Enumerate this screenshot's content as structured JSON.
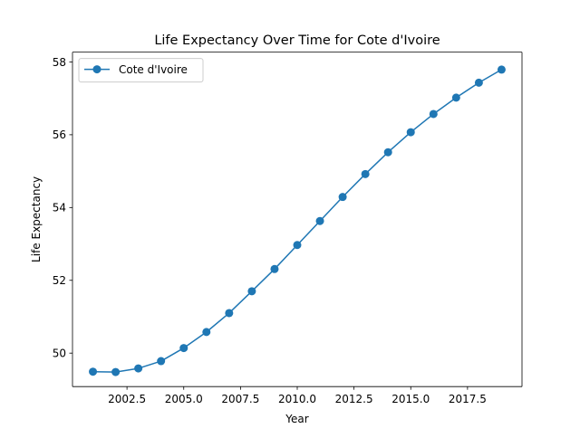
{
  "chart_data": {
    "type": "line",
    "title": "Life Expectancy Over Time for Cote d'Ivoire",
    "xlabel": "Year",
    "ylabel": "Life Expectancy",
    "x_ticks": [
      2002.5,
      2005.0,
      2007.5,
      2010.0,
      2012.5,
      2015.0,
      2017.5
    ],
    "x_tick_labels": [
      "2002.5",
      "2005.0",
      "2007.5",
      "2010.0",
      "2012.5",
      "2015.0",
      "2017.5"
    ],
    "y_ticks": [
      50,
      52,
      54,
      56,
      58
    ],
    "y_tick_labels": [
      "50",
      "52",
      "54",
      "56",
      "58"
    ],
    "xlim": [
      2000.1,
      2019.9
    ],
    "ylim": [
      49.08,
      58.27
    ],
    "grid": false,
    "legend_position": "upper-left",
    "series": [
      {
        "name": "Cote d'Ivoire",
        "color": "#1f77b4",
        "marker": "circle",
        "x": [
          2001,
          2002,
          2003,
          2004,
          2005,
          2006,
          2007,
          2008,
          2009,
          2010,
          2011,
          2012,
          2013,
          2014,
          2015,
          2016,
          2017,
          2018,
          2019
        ],
        "y": [
          49.49,
          49.48,
          49.58,
          49.78,
          50.14,
          50.58,
          51.1,
          51.7,
          52.31,
          52.97,
          53.63,
          54.29,
          54.92,
          55.52,
          56.07,
          56.57,
          57.02,
          57.43,
          57.79
        ]
      }
    ]
  }
}
